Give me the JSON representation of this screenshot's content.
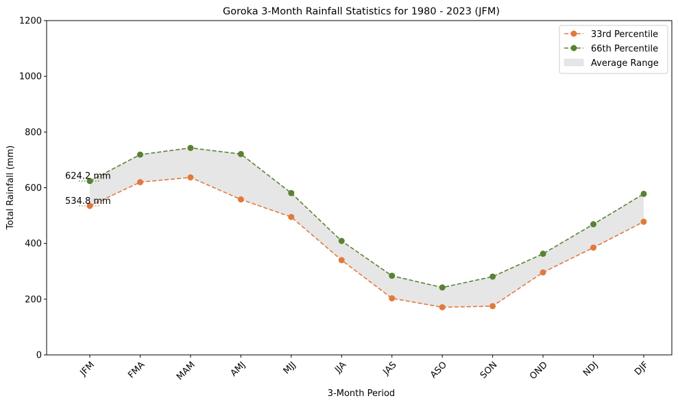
{
  "chart_data": {
    "type": "line",
    "title": "Goroka 3-Month Rainfall Statistics for 1980 - 2023 (JFM)",
    "xlabel": "3-Month Period",
    "ylabel": "Total Rainfall (mm)",
    "categories": [
      "JFM",
      "FMA",
      "MAM",
      "AMJ",
      "MJJ",
      "JJA",
      "JAS",
      "ASO",
      "SON",
      "OND",
      "NDJ",
      "DJF"
    ],
    "ylim": [
      0,
      1200
    ],
    "yticks": [
      0,
      200,
      400,
      600,
      800,
      1000,
      1200
    ],
    "series": [
      {
        "name": "33rd Percentile",
        "color": "#e07a3c",
        "values": [
          534.8,
          620,
          637,
          558,
          495,
          340,
          203,
          171,
          175,
          296,
          385,
          478
        ]
      },
      {
        "name": "66th Percentile",
        "color": "#5a8231",
        "values": [
          624.2,
          719,
          743,
          721,
          581,
          409,
          284,
          242,
          281,
          363,
          469,
          578
        ]
      }
    ],
    "band": {
      "name": "Average Range",
      "color": "#e6e6e6"
    },
    "annotations": [
      {
        "text": "624.2 mm",
        "series": 1,
        "index": 0
      },
      {
        "text": "534.8 mm",
        "series": 0,
        "index": 0
      }
    ],
    "legend": "top-right",
    "grid": false
  }
}
